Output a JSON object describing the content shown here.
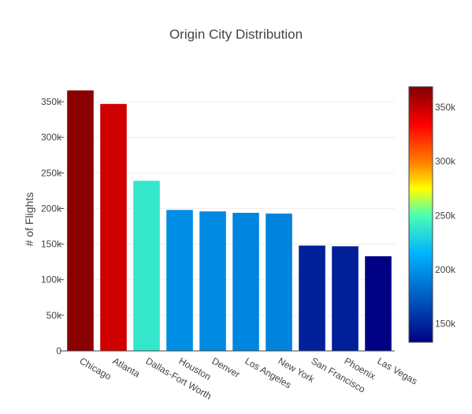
{
  "chart_data": {
    "type": "bar",
    "title": "Origin City Distribution",
    "xlabel": "",
    "ylabel": "# of Flights",
    "categories": [
      "Chicago",
      "Atlanta",
      "Dallas-Fort Worth",
      "Houston",
      "Denver",
      "Los Angeles",
      "New York",
      "San Francisco",
      "Phoenix",
      "Las Vegas"
    ],
    "values": [
      366000,
      347000,
      239000,
      198000,
      196000,
      194000,
      193000,
      148000,
      147000,
      133000
    ],
    "ylim": [
      0,
      370000
    ],
    "yticks": [
      0,
      50000,
      100000,
      150000,
      200000,
      250000,
      300000,
      350000
    ],
    "ytick_labels": [
      "0",
      "50k",
      "100k",
      "150k",
      "200k",
      "250k",
      "300k",
      "350k"
    ],
    "grid": true,
    "colorscale": "Jet",
    "colorbar": {
      "range": [
        133000,
        369000
      ],
      "ticks": [
        150000,
        200000,
        250000,
        300000,
        350000
      ],
      "tick_labels": [
        "150k",
        "200k",
        "250k",
        "300k",
        "350k"
      ]
    }
  }
}
